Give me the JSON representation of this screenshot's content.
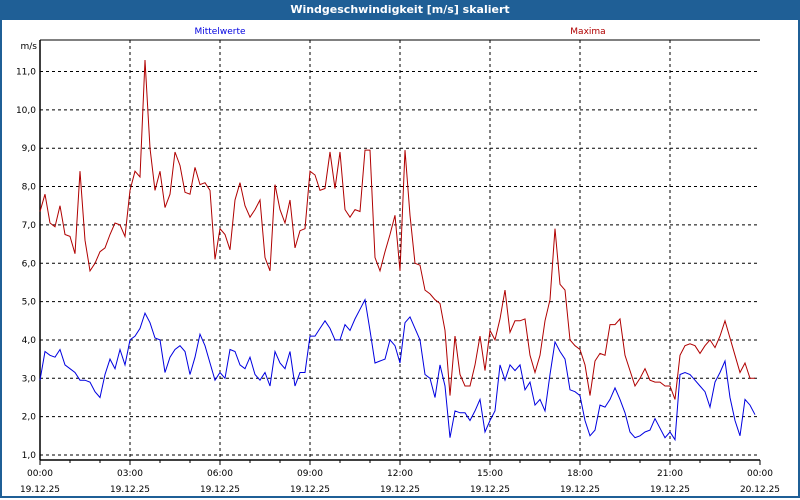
{
  "window": {
    "title": "Windgeschwindigkeit [m/s] skaliert"
  },
  "chart_data": {
    "type": "line",
    "title": "Windgeschwindigkeit [m/s] skaliert",
    "ylabel": "m/s",
    "ylim": [
      1.0,
      11.0
    ],
    "yticks": [
      "1,0",
      "2,0",
      "3,0",
      "4,0",
      "5,0",
      "6,0",
      "7,0",
      "8,0",
      "9,0",
      "10,0",
      "11,0"
    ],
    "xlim_hours": [
      0,
      24
    ],
    "xticks": [
      {
        "time": "00:00",
        "date": "19.12.25"
      },
      {
        "time": "03:00",
        "date": "19.12.25"
      },
      {
        "time": "06:00",
        "date": "19.12.25"
      },
      {
        "time": "09:00",
        "date": "19.12.25"
      },
      {
        "time": "12:00",
        "date": "19.12.25"
      },
      {
        "time": "15:00",
        "date": "19.12.25"
      },
      {
        "time": "18:00",
        "date": "19.12.25"
      },
      {
        "time": "21:00",
        "date": "19.12.25"
      },
      {
        "time": "00:00",
        "date": "20.12.25"
      }
    ],
    "grid": true,
    "interval_minutes": 10,
    "series": [
      {
        "name": "Mittelwerte",
        "color": "#0000e0",
        "values": [
          2.95,
          3.7,
          3.6,
          3.55,
          3.75,
          3.35,
          3.25,
          3.15,
          2.95,
          2.95,
          2.9,
          2.65,
          2.5,
          3.1,
          3.5,
          3.25,
          3.75,
          3.35,
          4.0,
          4.1,
          4.3,
          4.7,
          4.45,
          4.05,
          4.0,
          3.15,
          3.55,
          3.75,
          3.85,
          3.7,
          3.1,
          3.55,
          4.15,
          3.85,
          3.4,
          2.95,
          3.15,
          3.0,
          3.75,
          3.7,
          3.35,
          3.25,
          3.55,
          3.1,
          2.95,
          3.15,
          2.8,
          3.7,
          3.4,
          3.25,
          3.7,
          2.8,
          3.15,
          3.15,
          4.1,
          4.1,
          4.3,
          4.5,
          4.3,
          4.0,
          4.0,
          4.4,
          4.25,
          4.55,
          4.8,
          5.05,
          4.25,
          3.4,
          3.45,
          3.5,
          4.0,
          3.85,
          3.4,
          4.45,
          4.6,
          4.3,
          4.0,
          3.1,
          3.0,
          2.5,
          3.35,
          2.8,
          1.45,
          2.15,
          2.1,
          2.1,
          1.9,
          2.15,
          2.45,
          1.6,
          1.9,
          2.15,
          3.35,
          2.95,
          3.35,
          3.2,
          3.35,
          2.7,
          2.9,
          2.3,
          2.45,
          2.15,
          3.1,
          3.95,
          3.7,
          3.5,
          2.7,
          2.65,
          2.55,
          1.9,
          1.5,
          1.65,
          2.3,
          2.25,
          2.45,
          2.75,
          2.45,
          2.1,
          1.6,
          1.45,
          1.5,
          1.6,
          1.65,
          1.95,
          1.7,
          1.45,
          1.6,
          1.4,
          3.1,
          3.15,
          3.1,
          2.95,
          2.8,
          2.65,
          2.25,
          2.9,
          3.15,
          3.45,
          2.5,
          1.9,
          1.5,
          2.45,
          2.3,
          2.05
        ]
      },
      {
        "name": "Maxima",
        "color": "#b00000",
        "values": [
          7.35,
          7.8,
          7.05,
          6.95,
          7.5,
          6.75,
          6.7,
          6.25,
          8.4,
          6.6,
          5.8,
          6.0,
          6.3,
          6.4,
          6.75,
          7.05,
          7.0,
          6.7,
          7.9,
          8.4,
          8.25,
          11.3,
          9.0,
          7.9,
          8.4,
          7.45,
          7.8,
          8.9,
          8.55,
          7.85,
          7.8,
          8.5,
          8.05,
          8.1,
          7.9,
          6.1,
          6.9,
          6.75,
          6.35,
          7.65,
          8.1,
          7.5,
          7.2,
          7.4,
          7.65,
          6.15,
          5.8,
          8.05,
          7.4,
          7.05,
          7.65,
          6.4,
          6.85,
          6.9,
          8.4,
          8.3,
          7.9,
          7.95,
          8.9,
          7.95,
          8.9,
          7.4,
          7.2,
          7.4,
          7.35,
          8.95,
          8.95,
          6.15,
          5.8,
          6.3,
          6.75,
          7.25,
          5.8,
          8.95,
          7.25,
          6.0,
          5.95,
          5.3,
          5.2,
          5.05,
          4.95,
          4.25,
          2.55,
          4.1,
          3.1,
          2.8,
          2.8,
          3.35,
          4.1,
          3.2,
          4.25,
          4.0,
          4.55,
          5.3,
          4.2,
          4.5,
          4.5,
          4.55,
          3.6,
          3.15,
          3.6,
          4.5,
          5.05,
          6.9,
          5.45,
          5.3,
          4.0,
          3.85,
          3.75,
          3.35,
          2.55,
          3.45,
          3.65,
          3.6,
          4.4,
          4.4,
          4.55,
          3.6,
          3.2,
          2.8,
          3.0,
          3.25,
          2.95,
          2.9,
          2.9,
          2.8,
          2.8,
          2.45,
          3.6,
          3.85,
          3.9,
          3.85,
          3.65,
          3.85,
          4.0,
          3.8,
          4.1,
          4.5,
          4.05,
          3.6,
          3.15,
          3.4,
          3.0,
          3.0
        ]
      }
    ]
  }
}
